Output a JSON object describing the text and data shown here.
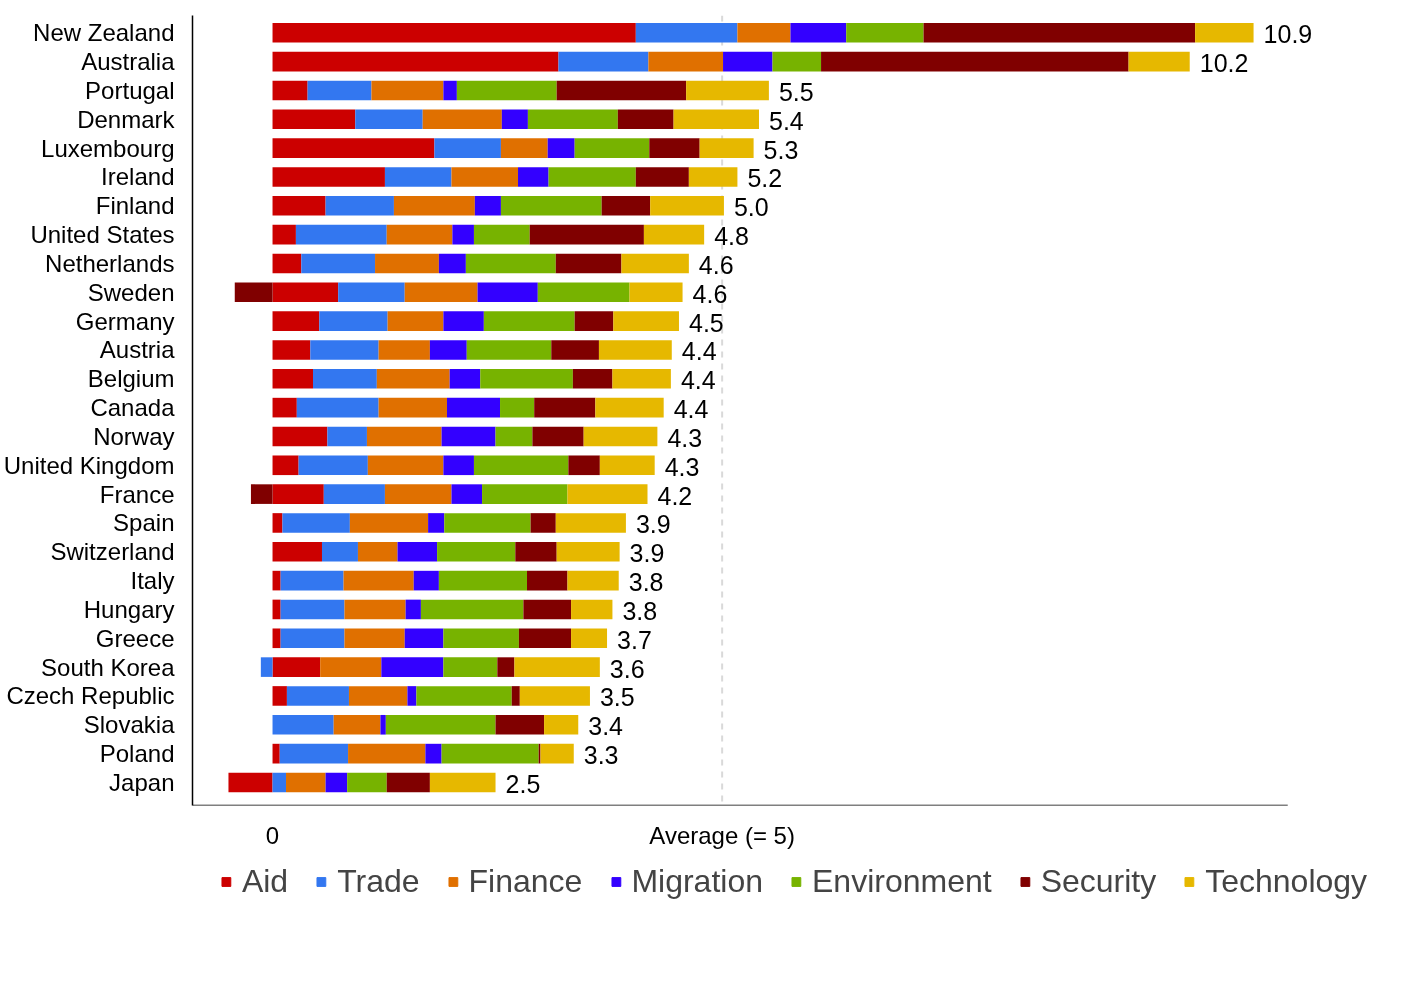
{
  "chart_data": {
    "type": "bar",
    "orientation": "horizontal",
    "stacked": true,
    "categories": [
      "New Zealand",
      "Australia",
      "Portugal",
      "Denmark",
      "Luxembourg",
      "Ireland",
      "Finland",
      "United States",
      "Netherlands",
      "Sweden",
      "Germany",
      "Austria",
      "Belgium",
      "Canada",
      "Norway",
      "United Kingdom",
      "France",
      "Spain",
      "Switzerland",
      "Italy",
      "Hungary",
      "Greece",
      "South Korea",
      "Czech Republic",
      "Slovakia",
      "Poland",
      "Japan"
    ],
    "series": [
      {
        "name": "Aid",
        "color": "#cc0000",
        "values": [
          4.04,
          3.18,
          0.39,
          0.92,
          1.8,
          1.25,
          0.59,
          0.26,
          0.32,
          0.73,
          0.52,
          0.42,
          0.45,
          0.27,
          0.61,
          0.29,
          0.57,
          0.11,
          0.55,
          0.09,
          0.09,
          0.09,
          0.53,
          0.16,
          0,
          0.08,
          -0.49
        ]
      },
      {
        "name": "Trade",
        "color": "#3377f0",
        "values": [
          1.13,
          1.0,
          0.71,
          0.75,
          0.74,
          0.74,
          0.76,
          1.01,
          0.82,
          0.74,
          0.76,
          0.76,
          0.71,
          0.91,
          0.44,
          0.77,
          0.68,
          0.75,
          0.4,
          0.7,
          0.71,
          0.71,
          -0.13,
          0.69,
          0.68,
          0.76,
          0.15
        ]
      },
      {
        "name": "Finance",
        "color": "#e07000",
        "values": [
          0.59,
          0.83,
          0.8,
          0.88,
          0.52,
          0.74,
          0.9,
          0.73,
          0.71,
          0.81,
          0.62,
          0.57,
          0.81,
          0.76,
          0.83,
          0.84,
          0.74,
          0.87,
          0.44,
          0.78,
          0.68,
          0.67,
          0.68,
          0.65,
          0.52,
          0.86,
          0.44
        ]
      },
      {
        "name": "Migration",
        "color": "#3300ff",
        "values": [
          0.62,
          0.55,
          0.15,
          0.29,
          0.3,
          0.34,
          0.29,
          0.24,
          0.3,
          0.67,
          0.45,
          0.41,
          0.34,
          0.59,
          0.6,
          0.34,
          0.34,
          0.18,
          0.44,
          0.28,
          0.17,
          0.43,
          0.69,
          0.1,
          0.06,
          0.18,
          0.24
        ]
      },
      {
        "name": "Environment",
        "color": "#77b300",
        "values": [
          0.86,
          0.54,
          1.11,
          1.0,
          0.83,
          0.97,
          1.12,
          0.62,
          1.0,
          1.02,
          1.01,
          0.94,
          1.03,
          0.38,
          0.41,
          1.05,
          0.95,
          0.96,
          0.87,
          0.98,
          1.14,
          0.84,
          0.6,
          1.06,
          1.22,
          1.08,
          0.44
        ]
      },
      {
        "name": "Security",
        "color": "#800000",
        "values": [
          3.02,
          3.42,
          1.44,
          0.62,
          0.56,
          0.59,
          0.54,
          1.27,
          0.73,
          -0.42,
          0.43,
          0.53,
          0.44,
          0.68,
          0.57,
          0.35,
          -0.24,
          0.28,
          0.46,
          0.45,
          0.53,
          0.58,
          0.19,
          0.09,
          0.54,
          0.02,
          0.48
        ]
      },
      {
        "name": "Technology",
        "color": "#e6b800",
        "values": [
          0.65,
          0.68,
          0.92,
          0.95,
          0.6,
          0.54,
          0.82,
          0.67,
          0.75,
          0.59,
          0.73,
          0.81,
          0.65,
          0.76,
          0.82,
          0.61,
          0.89,
          0.78,
          0.7,
          0.57,
          0.46,
          0.4,
          0.95,
          0.78,
          0.38,
          0.37,
          0.73
        ]
      }
    ],
    "annotations": [
      "10.9",
      "10.2",
      "5.5",
      "5.4",
      "5.3",
      "5.2",
      "5.0",
      "4.8",
      "4.6",
      "4.6",
      "4.5",
      "4.4",
      "4.4",
      "4.4",
      "4.3",
      "4.3",
      "4.2",
      "3.9",
      "3.9",
      "3.8",
      "3.8",
      "3.7",
      "3.6",
      "3.5",
      "3.4",
      "3.3",
      "2.5"
    ],
    "xlim": [
      -0.89,
      11.29
    ],
    "xticks": [
      0,
      {
        "value": 5,
        "label": "Average (= 5)"
      }
    ],
    "ref_lines": [
      {
        "axis": "x",
        "value": 5,
        "color": "#d9d9d9",
        "line_style": "dashed"
      }
    ],
    "grid": false,
    "legend": "bottom"
  }
}
